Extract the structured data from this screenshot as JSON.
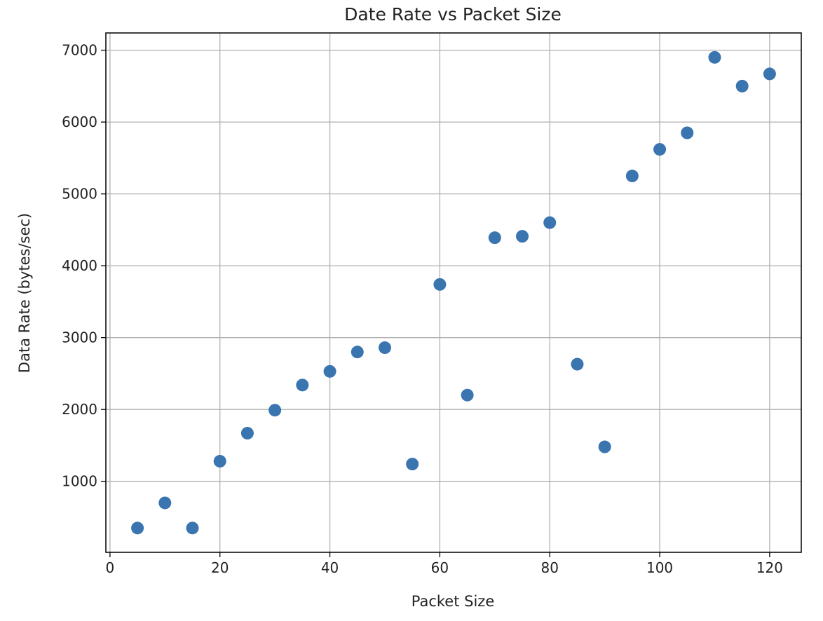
{
  "chart_data": {
    "type": "scatter",
    "title": "Date Rate vs Packet Size",
    "xlabel": "Packet Size",
    "ylabel": "Data Rate (bytes/sec)",
    "xlim": [
      -0.75,
      125.75
    ],
    "ylim": [
      12,
      7240
    ],
    "xticks": [
      0,
      20,
      40,
      60,
      80,
      100,
      120
    ],
    "yticks": [
      1000,
      2000,
      3000,
      4000,
      5000,
      6000,
      7000
    ],
    "grid": true,
    "color": "#3a75b0",
    "x": [
      5,
      10,
      15,
      20,
      25,
      30,
      35,
      40,
      45,
      50,
      55,
      60,
      65,
      70,
      75,
      80,
      85,
      90,
      95,
      100,
      105,
      110,
      115,
      120
    ],
    "y": [
      350,
      700,
      350,
      1280,
      1670,
      1990,
      2340,
      2530,
      2800,
      2860,
      1240,
      3740,
      2200,
      4390,
      4410,
      4600,
      2630,
      1480,
      5250,
      5620,
      5850,
      6900,
      6500,
      6670
    ]
  }
}
